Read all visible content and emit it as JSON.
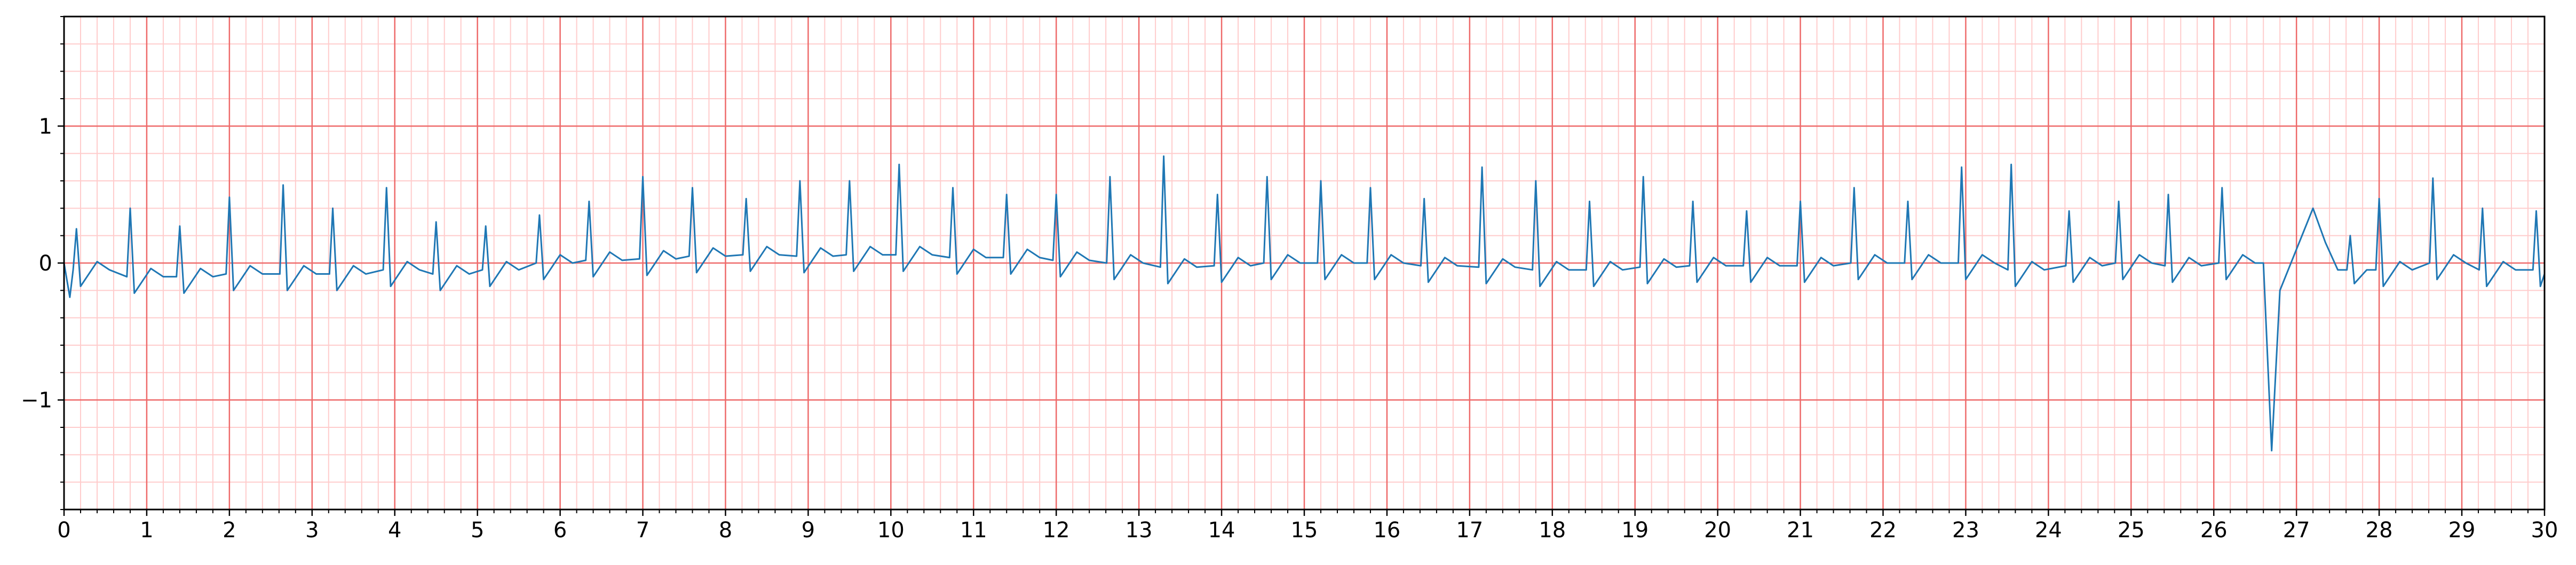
{
  "chart_data": {
    "type": "line",
    "x": [
      0,
      0.07,
      0.11,
      0.15,
      0.2,
      0.4,
      0.55,
      0.76,
      0.8,
      0.85,
      1.05,
      1.2,
      1.36,
      1.4,
      1.45,
      1.65,
      1.8,
      1.96,
      2.0,
      2.05,
      2.25,
      2.4,
      2.61,
      2.65,
      2.7,
      2.9,
      3.05,
      3.21,
      3.25,
      3.3,
      3.5,
      3.65,
      3.86,
      3.9,
      3.95,
      4.15,
      4.3,
      4.46,
      4.5,
      4.55,
      4.75,
      4.9,
      5.06,
      5.1,
      5.15,
      5.35,
      5.5,
      5.71,
      5.75,
      5.8,
      6.0,
      6.15,
      6.31,
      6.35,
      6.4,
      6.6,
      6.75,
      6.96,
      7.0,
      7.05,
      7.25,
      7.4,
      7.56,
      7.6,
      7.65,
      7.85,
      8.0,
      8.21,
      8.25,
      8.3,
      8.5,
      8.65,
      8.86,
      8.9,
      8.95,
      9.15,
      9.3,
      9.46,
      9.5,
      9.55,
      9.75,
      9.9,
      10.06,
      10.1,
      10.15,
      10.35,
      10.5,
      10.71,
      10.75,
      10.8,
      11.0,
      11.15,
      11.36,
      11.4,
      11.45,
      11.65,
      11.8,
      11.96,
      12.0,
      12.05,
      12.25,
      12.4,
      12.61,
      12.65,
      12.7,
      12.9,
      13.05,
      13.26,
      13.3,
      13.35,
      13.55,
      13.7,
      13.91,
      13.95,
      14.0,
      14.2,
      14.35,
      14.51,
      14.55,
      14.6,
      14.8,
      14.95,
      15.16,
      15.2,
      15.25,
      15.45,
      15.6,
      15.76,
      15.8,
      15.85,
      16.05,
      16.2,
      16.41,
      16.45,
      16.5,
      16.7,
      16.85,
      17.11,
      17.15,
      17.2,
      17.4,
      17.55,
      17.76,
      17.8,
      17.85,
      18.05,
      18.2,
      18.41,
      18.45,
      18.5,
      18.7,
      18.85,
      19.06,
      19.1,
      19.15,
      19.35,
      19.5,
      19.66,
      19.7,
      19.75,
      19.95,
      20.1,
      20.31,
      20.35,
      20.4,
      20.6,
      20.75,
      20.96,
      21.0,
      21.05,
      21.25,
      21.4,
      21.61,
      21.65,
      21.7,
      21.9,
      22.05,
      22.26,
      22.3,
      22.35,
      22.55,
      22.7,
      22.91,
      22.95,
      23.0,
      23.2,
      23.35,
      23.51,
      23.55,
      23.6,
      23.8,
      23.95,
      24.21,
      24.25,
      24.3,
      24.5,
      24.65,
      24.81,
      24.85,
      24.9,
      25.1,
      25.25,
      25.41,
      25.45,
      25.5,
      25.7,
      25.85,
      26.06,
      26.1,
      26.15,
      26.35,
      26.5,
      26.6,
      26.7,
      26.8,
      27.0,
      27.2,
      27.35,
      27.5,
      27.61,
      27.65,
      27.7,
      27.85,
      27.96,
      28.0,
      28.05,
      28.25,
      28.4,
      28.61,
      28.65,
      28.7,
      28.9,
      29.05,
      29.21,
      29.25,
      29.3,
      29.5,
      29.65,
      29.86,
      29.9,
      29.95,
      30.0
    ],
    "values": [
      0,
      -0.25,
      -0.05,
      0.25,
      -0.17,
      0.01,
      -0.05,
      -0.1,
      0.4,
      -0.22,
      -0.04,
      -0.1,
      -0.1,
      0.27,
      -0.22,
      -0.04,
      -0.1,
      -0.08,
      0.48,
      -0.2,
      -0.02,
      -0.08,
      -0.08,
      0.57,
      -0.2,
      -0.02,
      -0.08,
      -0.08,
      0.4,
      -0.2,
      -0.02,
      -0.08,
      -0.05,
      0.55,
      -0.17,
      0.01,
      -0.05,
      -0.08,
      0.3,
      -0.2,
      -0.02,
      -0.08,
      -0.05,
      0.27,
      -0.17,
      0.01,
      -0.05,
      0,
      0.35,
      -0.12,
      0.06,
      0,
      0.02,
      0.45,
      -0.1,
      0.08,
      0.02,
      0.03,
      0.63,
      -0.09,
      0.09,
      0.03,
      0.05,
      0.55,
      -0.07,
      0.11,
      0.05,
      0.06,
      0.47,
      -0.06,
      0.12,
      0.06,
      0.05,
      0.6,
      -0.07,
      0.11,
      0.05,
      0.06,
      0.6,
      -0.06,
      0.12,
      0.06,
      0.06,
      0.72,
      -0.06,
      0.12,
      0.06,
      0.04,
      0.55,
      -0.08,
      0.1,
      0.04,
      0.04,
      0.5,
      -0.08,
      0.1,
      0.04,
      0.02,
      0.5,
      -0.1,
      0.08,
      0.02,
      0,
      0.63,
      -0.12,
      0.06,
      0,
      -0.03,
      0.78,
      -0.15,
      0.03,
      -0.03,
      -0.02,
      0.5,
      -0.14,
      0.04,
      -0.02,
      0,
      0.63,
      -0.12,
      0.06,
      0,
      0,
      0.6,
      -0.12,
      0.06,
      0,
      0,
      0.55,
      -0.12,
      0.06,
      0,
      -0.02,
      0.47,
      -0.14,
      0.04,
      -0.02,
      -0.03,
      0.7,
      -0.15,
      0.03,
      -0.03,
      -0.05,
      0.6,
      -0.17,
      0.01,
      -0.05,
      -0.05,
      0.45,
      -0.17,
      0.01,
      -0.05,
      -0.03,
      0.63,
      -0.15,
      0.03,
      -0.03,
      -0.02,
      0.45,
      -0.14,
      0.04,
      -0.02,
      -0.02,
      0.38,
      -0.14,
      0.04,
      -0.02,
      -0.02,
      0.45,
      -0.14,
      0.04,
      -0.02,
      0,
      0.55,
      -0.12,
      0.06,
      0,
      0,
      0.45,
      -0.12,
      0.06,
      0,
      0,
      0.7,
      -0.12,
      0.06,
      0,
      -0.05,
      0.72,
      -0.17,
      0.01,
      -0.05,
      -0.02,
      0.38,
      -0.14,
      0.04,
      -0.02,
      0,
      0.45,
      -0.12,
      0.06,
      0,
      -0.02,
      0.5,
      -0.14,
      0.04,
      -0.02,
      0,
      0.55,
      -0.12,
      0.06,
      0,
      0,
      -1.37,
      -0.2,
      0.1,
      0.4,
      0.15,
      -0.05,
      -0.05,
      0.2,
      -0.15,
      -0.05,
      -0.05,
      0.47,
      -0.17,
      0.01,
      -0.05,
      0,
      0.62,
      -0.12,
      0.06,
      0,
      -0.05,
      0.4,
      -0.17,
      0.01,
      -0.05,
      -0.05,
      0.38,
      -0.17,
      -0.08
    ],
    "color": "#1f77b4",
    "xlim": [
      0,
      30
    ],
    "xticks": [
      0,
      1,
      2,
      3,
      4,
      5,
      6,
      7,
      8,
      9,
      10,
      11,
      12,
      13,
      14,
      15,
      16,
      17,
      18,
      19,
      20,
      21,
      22,
      23,
      24,
      25,
      26,
      27,
      28,
      29,
      30
    ],
    "ylim": [
      -1.8,
      1.8
    ],
    "yticks": [
      {
        "value": -1,
        "label": "−1"
      },
      0,
      1
    ],
    "grid": true
  }
}
